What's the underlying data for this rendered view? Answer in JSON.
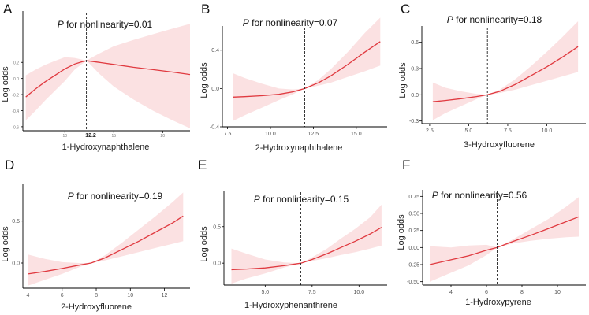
{
  "figure": {
    "y_axis_label": "Log odds",
    "p_label": "P",
    "p_text_prefix": " for nonlinearity="
  },
  "chart_data": [
    {
      "panel": "A",
      "type": "line",
      "title": "P for nonlinearity=0.01",
      "p_value": "0.01",
      "xlabel": "1-Hydroxynaphthalene",
      "ylabel": "Log odds",
      "xlim": [
        5.7,
        22.8
      ],
      "ylim": [
        -0.65,
        0.8
      ],
      "x_ticks": [
        10,
        15,
        20
      ],
      "x_tick_labels": [
        "10",
        "15",
        "20"
      ],
      "x_ticks_small": true,
      "y_ticks": [
        -0.6,
        -0.4,
        -0.2,
        0.0,
        0.2
      ],
      "y_tick_labels": [
        "-0.6",
        "-0.4",
        "-0.2",
        "0.0",
        "0.2"
      ],
      "y_ticks_small": true,
      "cutoff": 12.2,
      "cutoff_label": "12.2",
      "x": [
        6.0,
        7.0,
        8.0,
        9.0,
        10.0,
        11.0,
        11.8,
        12.2,
        12.6,
        13.5,
        15.0,
        17.0,
        19.0,
        21.0,
        22.8
      ],
      "y": [
        -0.23,
        -0.13,
        -0.04,
        0.04,
        0.12,
        0.18,
        0.21,
        0.22,
        0.215,
        0.2,
        0.175,
        0.14,
        0.11,
        0.08,
        0.05
      ],
      "lower": [
        -0.52,
        -0.4,
        -0.27,
        -0.15,
        -0.03,
        0.11,
        0.185,
        0.22,
        0.175,
        0.06,
        -0.1,
        -0.26,
        -0.4,
        -0.52,
        -0.62
      ],
      "upper": [
        0.04,
        0.11,
        0.17,
        0.22,
        0.265,
        0.255,
        0.235,
        0.22,
        0.25,
        0.31,
        0.4,
        0.48,
        0.55,
        0.62,
        0.68
      ]
    },
    {
      "panel": "B",
      "type": "line",
      "title": "P for nonlinearity=0.07",
      "p_value": "0.07",
      "xlabel": "2-Hydroxynaphthalene",
      "ylabel": "Log odds",
      "xlim": [
        7.2,
        16.8
      ],
      "ylim": [
        -0.4,
        0.62
      ],
      "x_ticks": [
        7.5,
        10.0,
        12.5,
        15.0
      ],
      "x_tick_labels": [
        "7.5",
        "10.0",
        "12.5",
        "15.0"
      ],
      "y_ticks": [
        -0.4,
        0.0,
        0.4
      ],
      "y_tick_labels": [
        "-0.4",
        "0.0",
        "0.4"
      ],
      "cutoff": 12.0,
      "x": [
        7.8,
        8.5,
        9.5,
        10.5,
        11.3,
        12.0,
        12.8,
        13.5,
        14.5,
        15.5,
        16.4
      ],
      "y": [
        -0.09,
        -0.085,
        -0.075,
        -0.06,
        -0.035,
        0.0,
        0.06,
        0.13,
        0.25,
        0.38,
        0.49
      ],
      "lower": [
        -0.34,
        -0.28,
        -0.2,
        -0.12,
        -0.06,
        0.0,
        0.03,
        0.06,
        0.12,
        0.18,
        0.24
      ],
      "upper": [
        0.16,
        0.11,
        0.05,
        0.0,
        -0.01,
        0.0,
        0.09,
        0.2,
        0.38,
        0.58,
        0.74
      ]
    },
    {
      "panel": "C",
      "type": "line",
      "title": "P for nonlinearity=0.18",
      "p_value": "0.18",
      "xlabel": "3-Hydroxyfluorene",
      "ylabel": "Log odds",
      "xlim": [
        2.0,
        12.5
      ],
      "ylim": [
        -0.33,
        0.75
      ],
      "x_ticks": [
        2.5,
        5.0,
        7.5,
        10.0
      ],
      "x_tick_labels": [
        "2.5",
        "5.0",
        "7.5",
        "10.0"
      ],
      "y_ticks": [
        -0.3,
        0.0,
        0.3,
        0.6
      ],
      "y_tick_labels": [
        "-0.3",
        "0.0",
        "0.3",
        "0.6"
      ],
      "cutoff": 6.2,
      "x": [
        2.7,
        3.5,
        4.5,
        5.5,
        6.2,
        7.0,
        8.0,
        9.0,
        10.0,
        11.0,
        12.0
      ],
      "y": [
        -0.08,
        -0.065,
        -0.045,
        -0.02,
        0.0,
        0.04,
        0.12,
        0.22,
        0.32,
        0.43,
        0.55
      ],
      "lower": [
        -0.29,
        -0.21,
        -0.13,
        -0.05,
        0.0,
        0.02,
        0.06,
        0.11,
        0.16,
        0.21,
        0.26
      ],
      "upper": [
        0.14,
        0.08,
        0.04,
        0.01,
        0.0,
        0.06,
        0.18,
        0.33,
        0.49,
        0.66,
        0.84
      ]
    },
    {
      "panel": "D",
      "type": "line",
      "title": "P for nonlinearity=0.19",
      "p_value": "0.19",
      "xlabel": "2-Hydroxyfluorene",
      "ylabel": "Log odds",
      "xlim": [
        3.7,
        13.5
      ],
      "ylim": [
        -0.3,
        0.9
      ],
      "x_ticks": [
        4,
        6,
        8,
        10,
        12
      ],
      "x_tick_labels": [
        "4",
        "6",
        "8",
        "10",
        "12"
      ],
      "y_ticks": [
        0.0,
        0.5
      ],
      "y_tick_labels": [
        "0.0",
        "0.5"
      ],
      "cutoff": 7.7,
      "x": [
        4.0,
        5.0,
        6.0,
        7.0,
        7.7,
        8.5,
        9.5,
        10.5,
        11.5,
        12.5,
        13.1
      ],
      "y": [
        -0.13,
        -0.1,
        -0.065,
        -0.025,
        0.0,
        0.06,
        0.16,
        0.26,
        0.37,
        0.48,
        0.56
      ],
      "lower": [
        -0.27,
        -0.2,
        -0.13,
        -0.05,
        0.0,
        0.03,
        0.08,
        0.13,
        0.18,
        0.23,
        0.26
      ],
      "upper": [
        0.1,
        0.05,
        0.01,
        0.0,
        0.0,
        0.09,
        0.24,
        0.4,
        0.56,
        0.73,
        0.84
      ]
    },
    {
      "panel": "E",
      "type": "line",
      "title": "P for nonlinearity=0.15",
      "p_value": "0.15",
      "xlabel": "1-Hydroxyphenanthrene",
      "ylabel": "Log odds",
      "xlim": [
        2.8,
        11.5
      ],
      "ylim": [
        -0.3,
        0.95
      ],
      "x_ticks": [
        5.0,
        7.5,
        10.0
      ],
      "x_tick_labels": [
        "5.0",
        "7.5",
        "10.0"
      ],
      "y_ticks": [
        0.0,
        0.5
      ],
      "y_tick_labels": [
        "0.0",
        "0.5"
      ],
      "cutoff": 6.9,
      "x": [
        3.2,
        4.0,
        5.0,
        6.0,
        6.9,
        7.5,
        8.3,
        9.0,
        9.8,
        10.6,
        11.2
      ],
      "y": [
        -0.09,
        -0.08,
        -0.065,
        -0.035,
        0.0,
        0.05,
        0.13,
        0.21,
        0.3,
        0.4,
        0.49
      ],
      "lower": [
        -0.28,
        -0.21,
        -0.14,
        -0.06,
        0.0,
        0.03,
        0.07,
        0.11,
        0.15,
        0.2,
        0.24
      ],
      "upper": [
        0.2,
        0.13,
        0.05,
        0.01,
        0.0,
        0.08,
        0.2,
        0.33,
        0.47,
        0.63,
        0.8
      ]
    },
    {
      "panel": "F",
      "type": "line",
      "title": "P for nonlinearity=0.56",
      "p_value": "0.56",
      "xlabel": "1-Hydroxypyrene",
      "ylabel": "Log odds",
      "xlim": [
        2.4,
        11.6
      ],
      "ylim": [
        -0.55,
        0.8
      ],
      "x_ticks": [
        4,
        6,
        8,
        10
      ],
      "x_tick_labels": [
        "4",
        "6",
        "8",
        "10"
      ],
      "y_ticks": [
        -0.5,
        -0.25,
        0.0,
        0.25,
        0.5,
        0.75
      ],
      "y_tick_labels": [
        "-0.50",
        "-0.25",
        "0.00",
        "0.25",
        "0.50",
        "0.75"
      ],
      "cutoff": 6.6,
      "x": [
        2.8,
        4.0,
        5.0,
        6.0,
        6.6,
        7.5,
        8.5,
        9.5,
        10.5,
        11.2
      ],
      "y": [
        -0.25,
        -0.18,
        -0.12,
        -0.04,
        0.0,
        0.09,
        0.18,
        0.28,
        0.38,
        0.45
      ],
      "lower": [
        -0.5,
        -0.37,
        -0.26,
        -0.11,
        0.0,
        0.06,
        0.1,
        0.13,
        0.15,
        0.16
      ],
      "upper": [
        0.02,
        0.0,
        0.03,
        0.04,
        0.0,
        0.12,
        0.27,
        0.42,
        0.6,
        0.74
      ]
    }
  ]
}
